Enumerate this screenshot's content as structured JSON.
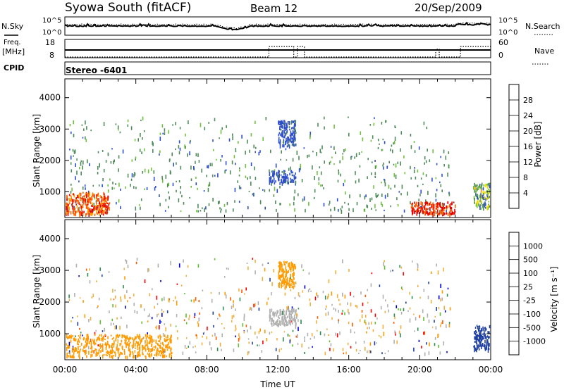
{
  "header": {
    "station": "Syowa South (fitACF)",
    "beam": "Beam 12",
    "date": "20/Sep/2009"
  },
  "strips": {
    "nsky_label": "N.Sky",
    "nsearch_label": "N.Search",
    "freq_label_1": "Freq.",
    "freq_label_2": "[MHz]",
    "nave_label": "Nave",
    "cpid_label": "CPID",
    "noise_ticks_left": [
      "10^5",
      "10^0"
    ],
    "noise_ticks_right": [
      "10^5",
      "10^0"
    ],
    "freq_ticks": [
      "18",
      "8"
    ],
    "nave_ticks": [
      "60",
      "0"
    ],
    "program": "Stereo -6401"
  },
  "colors": {
    "power": [
      "#0000ff",
      "#2f4fc8",
      "#4f8a5a",
      "#70c040",
      "#f0e000",
      "#ffa000",
      "#ff6000",
      "#e00000"
    ],
    "velocity": [
      "#ff0000",
      "#ff5a00",
      "#ff9a00",
      "#f0b040",
      "#b0b0b0",
      "#60c030",
      "#2f8f50",
      "#2040a0",
      "#0000e0"
    ]
  },
  "chart_data": [
    {
      "type": "heatmap",
      "title": "Power",
      "xlabel": "Time UT",
      "ylabel": "Slant Range [km]",
      "x_ticks": [
        "00:00",
        "04:00",
        "08:00",
        "12:00",
        "16:00",
        "20:00",
        "00:00"
      ],
      "x_range_hours": [
        0,
        24
      ],
      "y_ticks": [
        1000,
        2000,
        3000,
        4000
      ],
      "ylim": [
        180,
        4600
      ],
      "colorbar_label": "Power [dB]",
      "colorbar_ticks": [
        4,
        8,
        12,
        16,
        20,
        24,
        28
      ],
      "colorbar_range": [
        0,
        30
      ],
      "features": [
        {
          "time_hours": [
            0,
            2.5
          ],
          "range_km": [
            300,
            1000
          ],
          "level_db": [
            20,
            30
          ]
        },
        {
          "time_hours": [
            11.5,
            13
          ],
          "range_km": [
            1300,
            1700
          ],
          "level_db": [
            4,
            8
          ]
        },
        {
          "time_hours": [
            12,
            13
          ],
          "range_km": [
            2500,
            3300
          ],
          "level_db": [
            4,
            8
          ]
        },
        {
          "time_hours": [
            19.5,
            22
          ],
          "range_km": [
            300,
            700
          ],
          "level_db": [
            24,
            30
          ]
        },
        {
          "time_hours": [
            23,
            24
          ],
          "range_km": [
            500,
            1300
          ],
          "level_db": [
            4,
            20
          ]
        }
      ]
    },
    {
      "type": "heatmap",
      "title": "Velocity",
      "xlabel": "Time UT",
      "ylabel": "Slant Range [km]",
      "x_ticks": [
        "00:00",
        "04:00",
        "08:00",
        "12:00",
        "16:00",
        "20:00",
        "00:00"
      ],
      "x_range_hours": [
        0,
        24
      ],
      "y_ticks": [
        1000,
        2000,
        3000,
        4000
      ],
      "ylim": [
        180,
        4600
      ],
      "colorbar_label": "Velocity [m s⁻¹]",
      "colorbar_ticks": [
        "1000",
        "500",
        "100",
        "25",
        "-25",
        "-100",
        "-500",
        "-1000"
      ],
      "features": [
        {
          "time_hours": [
            0,
            6
          ],
          "range_km": [
            300,
            1000
          ],
          "velocity": [
            -500,
            -100
          ]
        },
        {
          "time_hours": [
            11.5,
            13
          ],
          "range_km": [
            1300,
            1800
          ],
          "velocity": [
            -25,
            25
          ]
        },
        {
          "time_hours": [
            12,
            13
          ],
          "range_km": [
            2500,
            3300
          ],
          "velocity": [
            -500,
            -100
          ]
        },
        {
          "time_hours": [
            23,
            24
          ],
          "range_km": [
            500,
            1300
          ],
          "velocity": [
            500,
            1000
          ]
        }
      ]
    }
  ]
}
